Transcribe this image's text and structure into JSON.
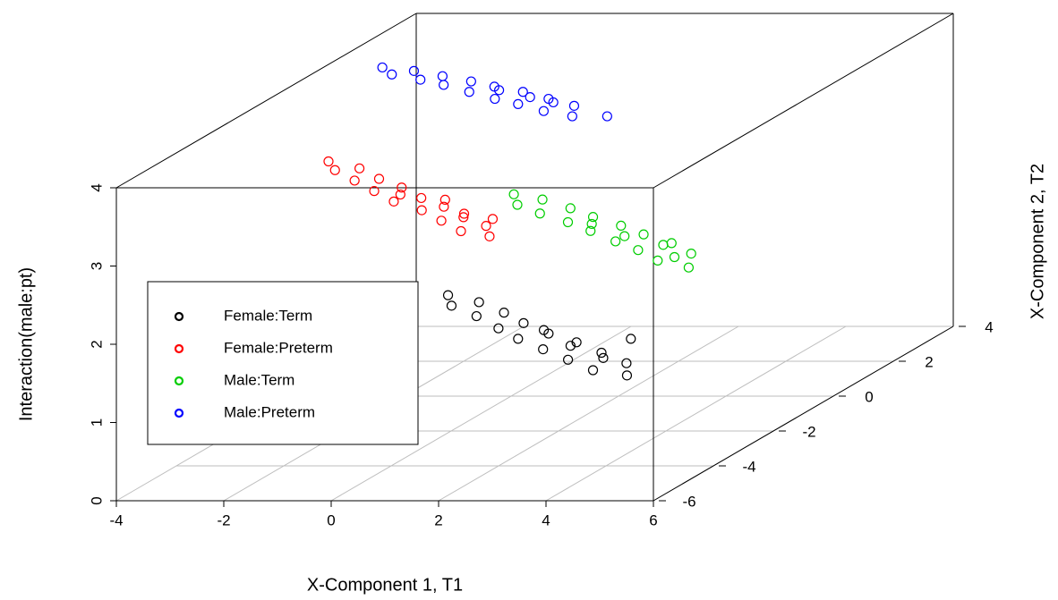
{
  "chart_data": {
    "type": "scatter3d",
    "xlabel": "X-Component 1, T1",
    "ylabel": "X-Component 2, T2",
    "zlabel": "Interaction(male:pt)",
    "xlim": [
      -4,
      6
    ],
    "xticks": [
      -4,
      -2,
      0,
      2,
      4,
      6
    ],
    "ylim": [
      -6,
      4
    ],
    "yticks": [
      -6,
      -4,
      -2,
      0,
      2,
      4
    ],
    "zlim": [
      0,
      4
    ],
    "zticks": [
      0,
      1,
      2,
      3,
      4
    ],
    "grid": true,
    "legend": "left",
    "series": [
      {
        "name": "Female:Term",
        "color": "#000000",
        "x": [
          -1.9,
          -1.5,
          -1.1,
          -0.7,
          -0.3,
          0.1,
          0.4,
          0.8,
          1.2,
          1.6,
          2.0,
          2.4,
          2.8,
          3.2,
          3.6,
          4.0,
          1.0,
          2.0,
          3.0,
          2.9
        ],
        "y": [
          1.3,
          0.7,
          0.9,
          0.1,
          0.3,
          -0.6,
          -0.3,
          -1.2,
          -0.9,
          -1.8,
          -1.4,
          -2.4,
          -2.0,
          -3.0,
          -2.6,
          -3.3,
          -0.7,
          -1.6,
          -2.3,
          -1.2
        ],
        "z": [
          1,
          1,
          1,
          1,
          1,
          1,
          1,
          1,
          1,
          1,
          1,
          1,
          1,
          1,
          1,
          1,
          1,
          1,
          1,
          1
        ]
      },
      {
        "name": "Female:Preterm",
        "color": "#ff0000",
        "x": [
          -3.4,
          -3.0,
          -2.6,
          -2.3,
          -1.9,
          -1.6,
          -1.2,
          -0.9,
          -0.5,
          -0.1,
          0.2,
          0.6,
          0.9,
          1.3,
          1.6,
          2.0,
          -1.0,
          0.0,
          0.8,
          1.5
        ],
        "y": [
          0.0,
          -0.5,
          -0.4,
          -1.1,
          -1.0,
          -1.7,
          -1.5,
          -2.3,
          -2.1,
          -2.8,
          -2.6,
          -3.4,
          -3.2,
          -4.0,
          -3.7,
          -4.3,
          -1.9,
          -2.2,
          -3.0,
          -3.3
        ],
        "z": [
          3,
          3,
          3,
          3,
          3,
          3,
          3,
          3,
          3,
          3,
          3,
          3,
          3,
          3,
          3,
          3,
          3,
          3,
          3,
          3
        ]
      },
      {
        "name": "Male:Term",
        "color": "#00cd00",
        "x": [
          -1.4,
          -1.0,
          -0.7,
          -0.3,
          0.1,
          0.5,
          0.8,
          1.2,
          1.6,
          2.0,
          2.3,
          2.7,
          3.1,
          3.4,
          3.8,
          4.2,
          1.0,
          2.0,
          3.0,
          3.6
        ],
        "y": [
          2.6,
          2.0,
          2.3,
          1.5,
          1.8,
          1.0,
          1.3,
          0.5,
          0.8,
          -0.1,
          0.3,
          -0.6,
          -0.2,
          -1.2,
          -0.8,
          -1.6,
          0.9,
          0.2,
          -0.3,
          -1.0
        ],
        "z": [
          2,
          2,
          2,
          2,
          2,
          2,
          2,
          2,
          2,
          2,
          2,
          2,
          2,
          2,
          2,
          2,
          2,
          2,
          2,
          2
        ]
      },
      {
        "name": "Male:Preterm",
        "color": "#0000ff",
        "x": [
          -2.9,
          -2.5,
          -2.2,
          -1.8,
          -1.5,
          -1.2,
          -0.8,
          -0.5,
          -0.2,
          0.2,
          0.5,
          0.8,
          1.2,
          1.5,
          1.9,
          2.2,
          0.0,
          0.8,
          1.4,
          2.85
        ],
        "y": [
          0.9,
          0.5,
          0.7,
          0.2,
          0.4,
          -0.1,
          0.1,
          -0.5,
          -0.2,
          -0.9,
          -0.5,
          -1.2,
          -0.9,
          -1.6,
          -1.3,
          -1.9,
          -0.4,
          -0.8,
          -1.1,
          -1.9
        ],
        "z": [
          4,
          4,
          4,
          4,
          4,
          4,
          4,
          4,
          4,
          4,
          4,
          4,
          4,
          4,
          4,
          4,
          4,
          4,
          4,
          4
        ]
      }
    ]
  }
}
